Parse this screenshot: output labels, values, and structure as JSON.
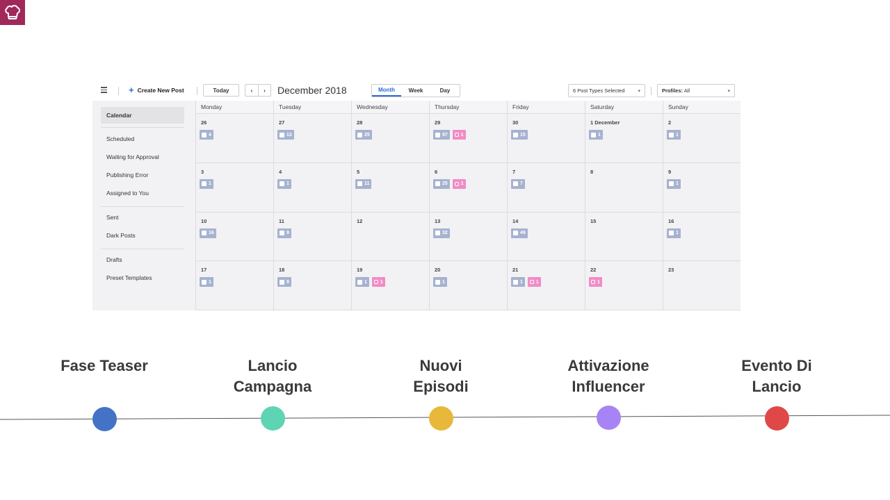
{
  "toolbar": {
    "create_label": "Create New Post",
    "today_label": "Today",
    "prev_label": "‹",
    "next_label": "›",
    "month_title": "December 2018",
    "views": [
      "Month",
      "Week",
      "Day"
    ],
    "active_view": "Month",
    "post_types": "6 Post Types Selected",
    "profiles_label": "Profiles:",
    "profiles_value": "All"
  },
  "sidebar": {
    "groups": [
      [
        "Calendar"
      ],
      [
        "Scheduled",
        "Waiting for Approval",
        "Publishing Error",
        "Assigned to You"
      ],
      [
        "Sent",
        "Dark Posts"
      ],
      [
        "Drafts",
        "Preset Templates"
      ]
    ],
    "active": "Calendar"
  },
  "calendar": {
    "weekdays": [
      "Monday",
      "Tuesday",
      "Wednesday",
      "Thursday",
      "Friday",
      "Saturday",
      "Sunday"
    ],
    "weeks": [
      [
        {
          "day": "26",
          "fb": "4"
        },
        {
          "day": "27",
          "fb": "13"
        },
        {
          "day": "28",
          "fb": "25"
        },
        {
          "day": "29",
          "fb": "97",
          "ig": "1"
        },
        {
          "day": "30",
          "fb": "15"
        },
        {
          "day": "1   December",
          "fb": "1"
        },
        {
          "day": "2",
          "fb": "1"
        }
      ],
      [
        {
          "day": "3",
          "fb": "1"
        },
        {
          "day": "4",
          "fb": "1"
        },
        {
          "day": "5",
          "fb": "11"
        },
        {
          "day": "6",
          "fb": "25",
          "ig": "1"
        },
        {
          "day": "7",
          "fb": "7"
        },
        {
          "day": "8"
        },
        {
          "day": "9",
          "fb": "1"
        }
      ],
      [
        {
          "day": "10",
          "fb": "16"
        },
        {
          "day": "11",
          "fb": "9"
        },
        {
          "day": "12"
        },
        {
          "day": "13",
          "fb": "32"
        },
        {
          "day": "14",
          "fb": "49"
        },
        {
          "day": "15"
        },
        {
          "day": "16",
          "fb": "1"
        }
      ],
      [
        {
          "day": "17",
          "fb": "1"
        },
        {
          "day": "18",
          "fb": "9"
        },
        {
          "day": "19",
          "fb": "1",
          "ig": "1"
        },
        {
          "day": "20",
          "fb": "1"
        },
        {
          "day": "21",
          "fb": "1",
          "ig": "1"
        },
        {
          "day": "22",
          "ig": "1"
        },
        {
          "day": "23"
        }
      ]
    ]
  },
  "timeline": {
    "milestones": [
      {
        "label": "Fase Teaser",
        "color": "#4472c4"
      },
      {
        "label": "Lancio\nCampagna",
        "color": "#5dd4b4"
      },
      {
        "label": "Nuovi\nEpisodi",
        "color": "#e8b83a"
      },
      {
        "label": "Attivazione\nInfluencer",
        "color": "#a784f5"
      },
      {
        "label": "Evento Di\nLancio",
        "color": "#e04848"
      }
    ]
  },
  "colors": {
    "logo": "#a0285a",
    "facebook_badge": "#a6b2d0",
    "instagram_badge": "#f08cc6",
    "accent": "#2b6cd4"
  }
}
